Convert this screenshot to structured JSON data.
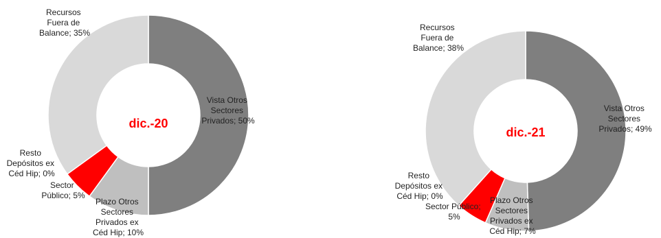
{
  "colors": {
    "vista": "#7f7f7f",
    "plazo": "#bfbfbf",
    "sector_publico": "#ff0000",
    "resto": "#ff0000",
    "recursos": "#d9d9d9",
    "center_text": "#ff0000",
    "separator": "#ffffff"
  },
  "chart_data": [
    {
      "type": "pie",
      "donut": true,
      "center_label": "dic.-20",
      "slices": [
        {
          "label": "Vista Otros Sectores Privados; 50%",
          "value": 50,
          "color": "#7f7f7f"
        },
        {
          "label": "Plazo Otros Sectores Privados ex Céd Hip; 10%",
          "value": 10,
          "color": "#bfbfbf"
        },
        {
          "label": "Sector Público; 5%",
          "value": 5,
          "color": "#ff0000"
        },
        {
          "label": "Resto Depósitos ex Céd Hip; 0%",
          "value": 0,
          "color": "#ff0000"
        },
        {
          "label": "Recursos Fuera de Balance; 35%",
          "value": 35,
          "color": "#d9d9d9"
        }
      ]
    },
    {
      "type": "pie",
      "donut": true,
      "center_label": "dic.-21",
      "slices": [
        {
          "label": "Vista Otros Sectores Privados; 49%",
          "value": 49,
          "color": "#7f7f7f"
        },
        {
          "label": "Plazo Otros Sectores Privados ex Céd Hip; 7%",
          "value": 7,
          "color": "#bfbfbf"
        },
        {
          "label": "Sector Público; 5%",
          "value": 5,
          "color": "#ff0000"
        },
        {
          "label": "Resto Depósitos ex Céd Hip; 0%",
          "value": 0,
          "color": "#ff0000"
        },
        {
          "label": "Recursos Fuera de Balance; 38%",
          "value": 38,
          "color": "#d9d9d9"
        }
      ]
    }
  ]
}
